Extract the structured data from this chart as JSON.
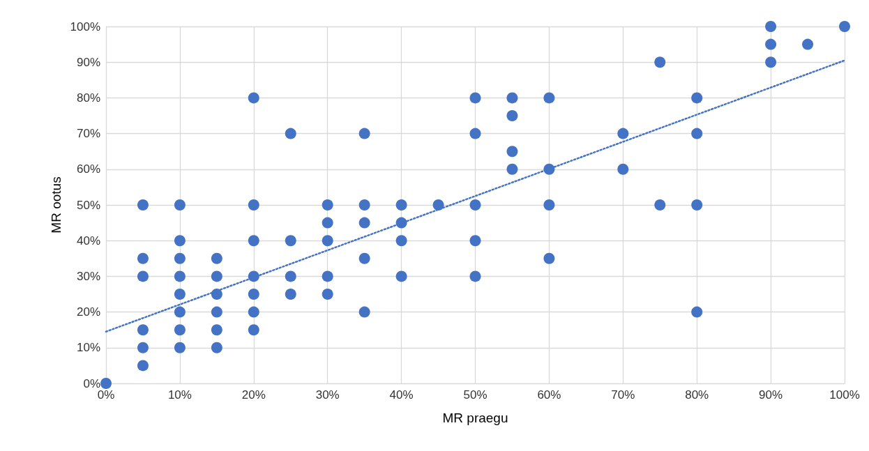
{
  "chart_data": {
    "type": "scatter",
    "xlabel": "MR praegu",
    "ylabel": "MR ootus",
    "xlim": [
      0,
      100
    ],
    "ylim": [
      0,
      100
    ],
    "xticks": [
      {
        "value": 0,
        "label": "0%"
      },
      {
        "value": 10,
        "label": "10%"
      },
      {
        "value": 20,
        "label": "20%"
      },
      {
        "value": 30,
        "label": "30%"
      },
      {
        "value": 40,
        "label": "40%"
      },
      {
        "value": 50,
        "label": "50%"
      },
      {
        "value": 60,
        "label": "60%"
      },
      {
        "value": 70,
        "label": "70%"
      },
      {
        "value": 80,
        "label": "80%"
      },
      {
        "value": 90,
        "label": "90%"
      },
      {
        "value": 100,
        "label": "100%"
      }
    ],
    "yticks": [
      {
        "value": 0,
        "label": "0%"
      },
      {
        "value": 10,
        "label": "10%"
      },
      {
        "value": 20,
        "label": "20%"
      },
      {
        "value": 30,
        "label": "30%"
      },
      {
        "value": 40,
        "label": "40%"
      },
      {
        "value": 50,
        "label": "50%"
      },
      {
        "value": 60,
        "label": "60%"
      },
      {
        "value": 70,
        "label": "70%"
      },
      {
        "value": 80,
        "label": "80%"
      },
      {
        "value": 90,
        "label": "90%"
      },
      {
        "value": 100,
        "label": "100%"
      }
    ],
    "grid": true,
    "marker": "circle",
    "series": [
      {
        "color": "#4472c4",
        "x": [
          0,
          5,
          5,
          5,
          5,
          5,
          5,
          10,
          10,
          10,
          10,
          10,
          10,
          10,
          10,
          15,
          15,
          15,
          15,
          15,
          15,
          20,
          20,
          20,
          20,
          20,
          20,
          20,
          25,
          25,
          25,
          25,
          30,
          30,
          30,
          30,
          30,
          35,
          35,
          35,
          35,
          35,
          40,
          40,
          40,
          40,
          45,
          50,
          50,
          50,
          50,
          50,
          55,
          55,
          55,
          55,
          60,
          60,
          60,
          60,
          70,
          70,
          75,
          75,
          80,
          80,
          80,
          80,
          90,
          90,
          90,
          95,
          100
        ],
        "values": [
          0,
          50,
          35,
          30,
          15,
          10,
          5,
          50,
          40,
          35,
          30,
          25,
          20,
          15,
          10,
          35,
          30,
          25,
          20,
          15,
          10,
          80,
          50,
          40,
          30,
          25,
          20,
          15,
          70,
          40,
          30,
          25,
          50,
          45,
          40,
          30,
          25,
          70,
          50,
          45,
          35,
          20,
          50,
          45,
          40,
          30,
          50,
          80,
          70,
          50,
          40,
          30,
          80,
          75,
          65,
          60,
          80,
          60,
          50,
          35,
          70,
          60,
          90,
          50,
          80,
          70,
          50,
          20,
          100,
          95,
          90,
          95,
          100
        ]
      },
      {
        "type": "line",
        "line_style": "dotted",
        "marker": "none",
        "color": "#4472c4",
        "x": [
          0,
          100
        ],
        "values": [
          14.5,
          90.5
        ]
      }
    ]
  }
}
